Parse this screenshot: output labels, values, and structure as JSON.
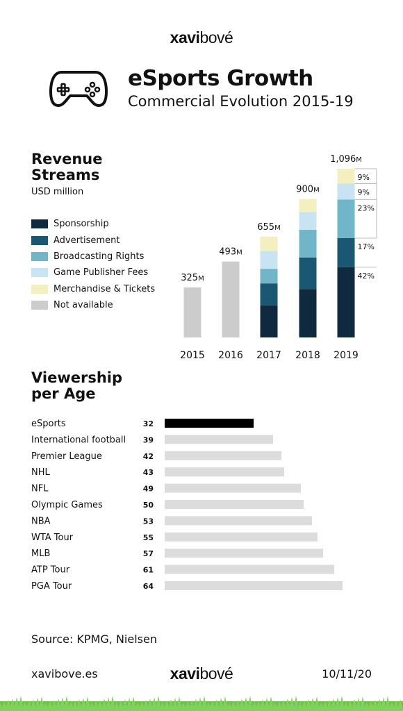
{
  "brand": {
    "part1": "xavi",
    "part2": "bové"
  },
  "header": {
    "title": "eSports Growth",
    "subtitle": "Commercial Evolution 2015-19"
  },
  "revenue": {
    "title": "Revenue Streams",
    "unit": "USD million"
  },
  "viewership": {
    "title": "Viewership per Age"
  },
  "footer": {
    "source": "Source: KPMG, Nielsen",
    "site": "xavibove.es",
    "date": "10/11/20"
  },
  "legend": [
    {
      "label": "Sponsorship",
      "color": "#0f2a3f"
    },
    {
      "label": "Advertisement",
      "color": "#1a5773"
    },
    {
      "label": "Broadcasting Rights",
      "color": "#70b5c8"
    },
    {
      "label": "Game Publisher Fees",
      "color": "#c8e3f1"
    },
    {
      "label": "Merchandise & Tickets",
      "color": "#f3efbf"
    },
    {
      "label": "Not available",
      "color": "#cccccc"
    }
  ],
  "chart_data": [
    {
      "type": "bar",
      "stacked": true,
      "title": "Revenue Streams",
      "ylabel": "USD million",
      "categories": [
        "2015",
        "2016",
        "2017",
        "2018",
        "2019"
      ],
      "totals": [
        325,
        493,
        655,
        900,
        1096
      ],
      "total_labels": [
        "325",
        "493",
        "655",
        "900",
        "1,096"
      ],
      "total_suffix": "M",
      "series": [
        {
          "name": "Sponsorship",
          "color": "#0f2a3f",
          "values": [
            null,
            null,
            208,
            315,
            456
          ]
        },
        {
          "name": "Advertisement",
          "color": "#1a5773",
          "values": [
            null,
            null,
            143,
            204,
            189
          ]
        },
        {
          "name": "Broadcasting Rights",
          "color": "#70b5c8",
          "values": [
            null,
            null,
            95,
            180,
            251
          ]
        },
        {
          "name": "Game Publisher Fees",
          "color": "#c8e3f1",
          "values": [
            null,
            null,
            116,
            116,
            103
          ]
        },
        {
          "name": "Merchandise & Tickets",
          "color": "#f3efbf",
          "values": [
            null,
            null,
            93,
            84,
            97
          ]
        },
        {
          "name": "Not available",
          "color": "#cccccc",
          "values": [
            325,
            493,
            null,
            null,
            null
          ]
        }
      ],
      "share_labels_2019": [
        "42%",
        "17%",
        "23%",
        "9%",
        "9%"
      ],
      "ylim": [
        0,
        1096
      ],
      "grid": false,
      "legend_position": "left"
    },
    {
      "type": "bar",
      "orientation": "horizontal",
      "title": "Viewership per Age",
      "categories": [
        "eSports",
        "International football",
        "Premier League",
        "NHL",
        "NFL",
        "Olympic Games",
        "NBA",
        "WTA Tour",
        "MLB",
        "ATP Tour",
        "PGA Tour"
      ],
      "values": [
        32,
        39,
        42,
        43,
        49,
        50,
        53,
        55,
        57,
        61,
        64
      ],
      "highlight": "eSports",
      "highlight_color": "#000000",
      "bar_color": "#dcdcdc",
      "xlim": [
        0,
        64
      ],
      "grid": false
    }
  ]
}
